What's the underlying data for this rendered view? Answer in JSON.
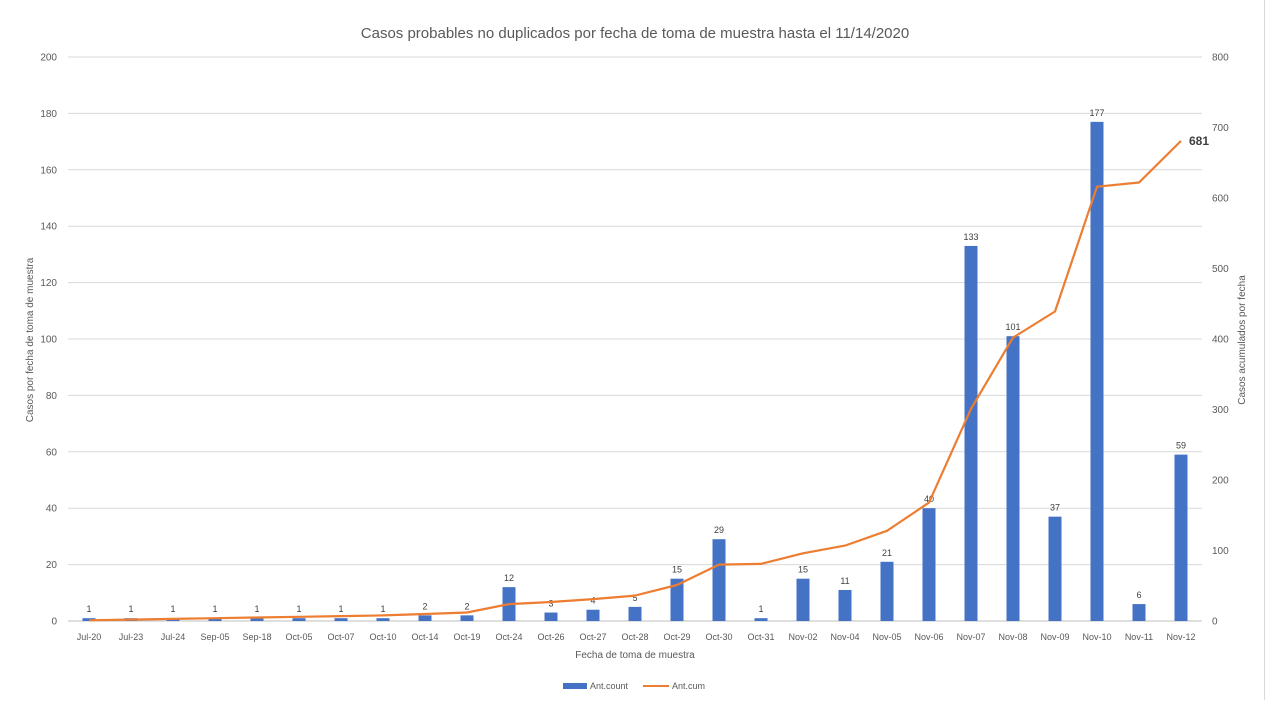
{
  "chart_data": {
    "type": "bar+line",
    "title": "Casos probables no duplicados por fecha de toma de muestra hasta el 11/14/2020",
    "xlabel": "Fecha de toma de muestra",
    "ylabel_left": "Casos por fecha de toma de muestra",
    "ylabel_right": "Casos acumulados por fecha",
    "ylim_left": [
      0,
      200
    ],
    "yticks_left": [
      0,
      20,
      40,
      60,
      80,
      100,
      120,
      140,
      160,
      180,
      200
    ],
    "ylim_right": [
      0,
      800
    ],
    "yticks_right": [
      0,
      100,
      200,
      300,
      400,
      500,
      600,
      700,
      800
    ],
    "grid": true,
    "legend_position": "bottom",
    "categories": [
      "Jul-20",
      "Jul-23",
      "Jul-24",
      "Sep-05",
      "Sep-18",
      "Oct-05",
      "Oct-07",
      "Oct-10",
      "Oct-14",
      "Oct-19",
      "Oct-24",
      "Oct-26",
      "Oct-27",
      "Oct-28",
      "Oct-29",
      "Oct-30",
      "Oct-31",
      "Nov-02",
      "Nov-04",
      "Nov-05",
      "Nov-06",
      "Nov-07",
      "Nov-08",
      "Nov-09",
      "Nov-10",
      "Nov-11",
      "Nov-12"
    ],
    "series": [
      {
        "name": "Ant.count",
        "type": "bar",
        "axis": "left",
        "color": "#4472C4",
        "values": [
          1,
          1,
          1,
          1,
          1,
          1,
          1,
          1,
          2,
          2,
          12,
          3,
          4,
          5,
          15,
          29,
          1,
          15,
          11,
          21,
          40,
          133,
          101,
          37,
          177,
          6,
          59
        ]
      },
      {
        "name": "Ant.cum",
        "type": "line",
        "axis": "right",
        "color": "#ED7D31",
        "values": [
          1,
          2,
          3,
          4,
          5,
          6,
          7,
          8,
          10,
          12,
          24,
          27,
          31,
          36,
          51,
          80,
          81,
          96,
          107,
          128,
          168,
          301,
          402,
          439,
          616,
          622,
          681
        ],
        "end_label": "681"
      }
    ]
  }
}
